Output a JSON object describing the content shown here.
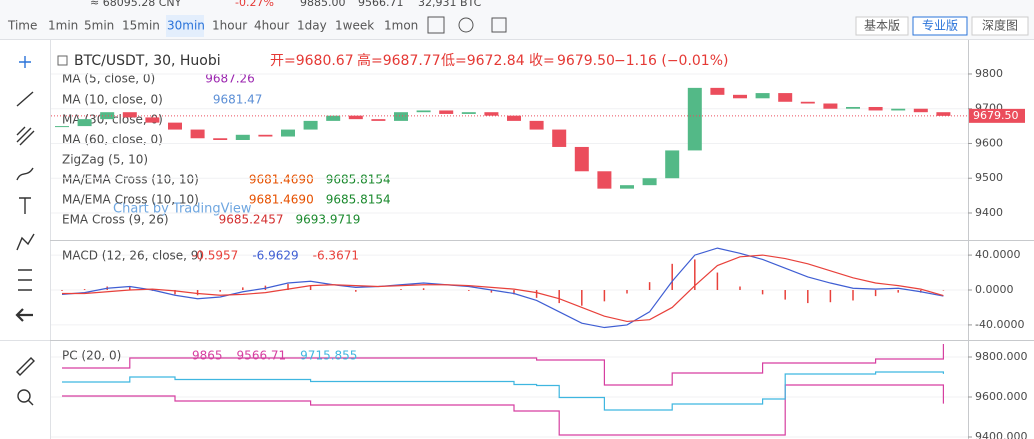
{
  "ticker": {
    "cny": "≈ 68095.28 CNY",
    "change": "-0.27%",
    "high24": "9885.00",
    "low24": "9566.71",
    "volume": "32,931 BTC",
    "symbol": "BTC/USDT, 30, Huobi",
    "open": "开=9680.67",
    "high": "高=9687.77",
    "low": "低=9672.84",
    "close_label": "收=",
    "close": "9679.50",
    "diff": "−1.16 (−0.01%)"
  },
  "toolbar": {
    "time": "Time",
    "intervals": [
      "1min",
      "5min",
      "15min",
      "30min",
      "1hour",
      "4hour",
      "1day",
      "1week",
      "1mon"
    ],
    "active": 3,
    "views": [
      "基本版",
      "专业版",
      "深度图"
    ],
    "active_view": 1
  },
  "indicators": [
    {
      "name": "MA (5, close, 0)",
      "values": [
        "9687.26"
      ],
      "color": "#9c27b0"
    },
    {
      "name": "MA (10, close, 0)",
      "values": [
        "9681.47"
      ],
      "color": "#5c8fd6"
    },
    {
      "name": "MA (30, close, 0)",
      "values": [],
      "color": "#8bc34a"
    },
    {
      "name": "MA (60, close, 0)",
      "values": [],
      "color": "#555"
    },
    {
      "name": "ZigZag (5, 10)",
      "values": [],
      "color": "#555"
    },
    {
      "name": "MA/EMA Cross (10, 10)",
      "values": [
        "9681.4690",
        "9685.8154"
      ],
      "color": "#e65100"
    },
    {
      "name": "MA/EMA Cross (10, 10)",
      "values": [
        "9681.4690",
        "9685.8154"
      ],
      "color": "#e65100"
    },
    {
      "name": "EMA Cross (9, 26)",
      "values": [
        "9685.2457",
        "9693.9719"
      ],
      "color": "#d32f2f"
    }
  ],
  "watermark": "Chart by TradingView",
  "chart_data": [
    {
      "type": "candlestick",
      "ylim": [
        9328,
        9892
      ],
      "yticks": [
        9800,
        9700,
        9600,
        9500,
        9400
      ],
      "up_color": "#53b987",
      "down_color": "#eb4d5c",
      "series": [
        {
          "name": "BTC/USDT",
          "values": [
            9650,
            9670,
            9690,
            9675,
            9660,
            9640,
            9615,
            9610,
            9625,
            9620,
            9640,
            9665,
            9680,
            9670,
            9665,
            9690,
            9695,
            9685,
            9690,
            9680,
            9665,
            9640,
            9590,
            9520,
            9470,
            9480,
            9500,
            9580,
            9760,
            9740,
            9730,
            9745,
            9720,
            9715,
            9700,
            9705,
            9695,
            9700,
            9690,
            9679.5
          ]
        }
      ]
    },
    {
      "type": "line",
      "title": "MACD (12, 26, close, 9)",
      "ylim": [
        -55,
        55
      ],
      "yticks": [
        {
          "value": 40,
          "label": "40.0000"
        },
        {
          "value": 0,
          "label": "0.0000"
        },
        {
          "value": -40,
          "label": "-40.0000"
        }
      ],
      "series": [
        {
          "name": "histogram",
          "color": "#e8413b",
          "kind": "bar",
          "values": [
            -1,
            1,
            4,
            4,
            -1,
            -5,
            -6,
            -2,
            3,
            5,
            7,
            5,
            0,
            -2,
            0,
            1,
            2,
            0,
            -1,
            -3,
            -5,
            -9,
            -15,
            -18,
            -13,
            -4,
            9,
            30,
            35,
            20,
            4,
            -5,
            -11,
            -15,
            -14,
            -12,
            -7,
            -3,
            -3,
            -0.5957
          ]
        },
        {
          "name": "macd",
          "color": "#3f5ed3",
          "values": [
            -5,
            -3,
            2,
            4,
            0,
            -6,
            -10,
            -8,
            -2,
            2,
            8,
            10,
            6,
            3,
            4,
            6,
            8,
            6,
            4,
            0,
            -4,
            -12,
            -25,
            -38,
            -43,
            -40,
            -25,
            10,
            40,
            48,
            42,
            35,
            25,
            15,
            8,
            2,
            1,
            2,
            -2,
            -6.9629
          ]
        },
        {
          "name": "signal",
          "color": "#e8413b",
          "values": [
            -4,
            -4,
            -2,
            0,
            1,
            -1,
            -4,
            -6,
            -5,
            -3,
            1,
            5,
            6,
            5,
            4,
            5,
            6,
            6,
            5,
            3,
            1,
            -3,
            -10,
            -20,
            -30,
            -36,
            -34,
            -20,
            5,
            28,
            38,
            40,
            36,
            30,
            22,
            14,
            8,
            5,
            1,
            -6.3671
          ]
        }
      ]
    },
    {
      "type": "line",
      "title": "PC (20, 0)",
      "step": true,
      "ylim": [
        9390,
        9875
      ],
      "yticks": [
        {
          "value": 9800,
          "label": "9800.000"
        },
        {
          "value": 9600,
          "label": "9600.000"
        },
        {
          "value": 9400,
          "label": "9400.000"
        }
      ],
      "series": [
        {
          "name": "upper",
          "color": "#d63fa0",
          "values": [
            9745,
            9745,
            9745,
            9795,
            9795,
            9795,
            9795,
            9795,
            9795,
            9795,
            9795,
            9795,
            9795,
            9795,
            9795,
            9795,
            9795,
            9795,
            9795,
            9795,
            9795,
            9785,
            9785,
            9785,
            9660,
            9660,
            9660,
            9720,
            9720,
            9720,
            9720,
            9770,
            9770,
            9770,
            9770,
            9770,
            9790,
            9790,
            9790,
            9865.0
          ]
        },
        {
          "name": "lower",
          "color": "#d63fa0",
          "values": [
            9605,
            9605,
            9605,
            9605,
            9605,
            9580,
            9580,
            9580,
            9580,
            9580,
            9580,
            9560,
            9560,
            9560,
            9560,
            9560,
            9560,
            9560,
            9560,
            9560,
            9530,
            9530,
            9410,
            9410,
            9410,
            9410,
            9410,
            9410,
            9410,
            9410,
            9410,
            9410,
            9660,
            9660,
            9660,
            9660,
            9660,
            9660,
            9660,
            9566.71
          ]
        },
        {
          "name": "middle",
          "color": "#3fb6e0",
          "values": [
            9675,
            9675,
            9675,
            9700,
            9700,
            9687.5,
            9687.5,
            9687.5,
            9687.5,
            9687.5,
            9687.5,
            9677.5,
            9677.5,
            9677.5,
            9677.5,
            9677.5,
            9677.5,
            9677.5,
            9677.5,
            9677.5,
            9662.5,
            9657.5,
            9597.5,
            9597.5,
            9535,
            9535,
            9535,
            9565,
            9565,
            9565,
            9565,
            9590,
            9715,
            9715,
            9715,
            9715,
            9725,
            9725,
            9725,
            9715.855
          ]
        }
      ]
    }
  ]
}
